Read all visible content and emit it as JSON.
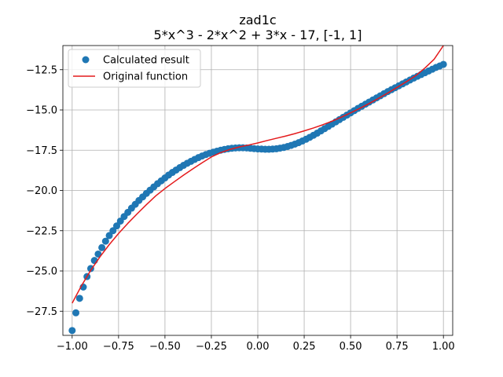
{
  "chart_data": {
    "type": "scatter",
    "title": "zad1c",
    "subtitle": "5*x^3 - 2*x^2 + 3*x - 17, [-1, 1]",
    "xlabel": "",
    "ylabel": "",
    "xlim": [
      -1.05,
      1.05
    ],
    "ylim": [
      -29.0,
      -11.0
    ],
    "x_ticks": [
      -1.0,
      -0.75,
      -0.5,
      -0.25,
      0.0,
      0.25,
      0.5,
      0.75,
      1.0
    ],
    "x_tick_labels": [
      "−1.00",
      "−0.75",
      "−0.50",
      "−0.25",
      "0.00",
      "0.25",
      "0.50",
      "0.75",
      "1.00"
    ],
    "y_ticks": [
      -27.5,
      -25.0,
      -22.5,
      -20.0,
      -17.5,
      -15.0,
      -12.5
    ],
    "y_tick_labels": [
      "−27.5",
      "−25.0",
      "−22.5",
      "−20.0",
      "−17.5",
      "−15.0",
      "−12.5"
    ],
    "grid": true,
    "legend_placement": "upper-left",
    "series": [
      {
        "name": "Calculated result",
        "kind": "scatter",
        "color": "#1f77b4",
        "x": [
          -1.0,
          -0.98,
          -0.96,
          -0.94,
          -0.92,
          -0.9,
          -0.88,
          -0.86,
          -0.84,
          -0.82,
          -0.8,
          -0.78,
          -0.76,
          -0.74,
          -0.72,
          -0.7,
          -0.68,
          -0.66,
          -0.64,
          -0.62,
          -0.6,
          -0.58,
          -0.56,
          -0.54,
          -0.52,
          -0.5,
          -0.48,
          -0.46,
          -0.44,
          -0.42,
          -0.4,
          -0.38,
          -0.36,
          -0.34,
          -0.32,
          -0.3,
          -0.28,
          -0.26,
          -0.24,
          -0.22,
          -0.2,
          -0.18,
          -0.16,
          -0.14,
          -0.12,
          -0.1,
          -0.08,
          -0.06,
          -0.04,
          -0.02,
          0.0,
          0.02,
          0.04,
          0.06,
          0.08,
          0.1,
          0.12,
          0.14,
          0.16,
          0.18,
          0.2,
          0.22,
          0.24,
          0.26,
          0.28,
          0.3,
          0.32,
          0.34,
          0.36,
          0.38,
          0.4,
          0.42,
          0.44,
          0.46,
          0.48,
          0.5,
          0.52,
          0.54,
          0.56,
          0.58,
          0.6,
          0.62,
          0.64,
          0.66,
          0.68,
          0.7,
          0.72,
          0.74,
          0.76,
          0.78,
          0.8,
          0.82,
          0.84,
          0.86,
          0.88,
          0.9,
          0.92,
          0.94,
          0.96,
          0.98,
          1.0
        ],
        "y": [
          -28.7,
          -27.6,
          -26.7,
          -26.0,
          -25.35,
          -24.85,
          -24.35,
          -23.95,
          -23.55,
          -23.15,
          -22.8,
          -22.5,
          -22.2,
          -21.9,
          -21.62,
          -21.36,
          -21.1,
          -20.86,
          -20.62,
          -20.4,
          -20.18,
          -19.98,
          -19.78,
          -19.58,
          -19.4,
          -19.22,
          -19.04,
          -18.88,
          -18.73,
          -18.58,
          -18.44,
          -18.31,
          -18.19,
          -18.07,
          -17.96,
          -17.86,
          -17.77,
          -17.69,
          -17.62,
          -17.56,
          -17.5,
          -17.45,
          -17.41,
          -17.38,
          -17.36,
          -17.35,
          -17.35,
          -17.36,
          -17.38,
          -17.4,
          -17.42,
          -17.43,
          -17.44,
          -17.44,
          -17.43,
          -17.41,
          -17.37,
          -17.33,
          -17.27,
          -17.2,
          -17.12,
          -17.03,
          -16.93,
          -16.82,
          -16.7,
          -16.57,
          -16.44,
          -16.3,
          -16.16,
          -16.02,
          -15.88,
          -15.74,
          -15.6,
          -15.46,
          -15.32,
          -15.18,
          -15.04,
          -14.9,
          -14.77,
          -14.64,
          -14.51,
          -14.38,
          -14.25,
          -14.12,
          -13.99,
          -13.86,
          -13.74,
          -13.62,
          -13.5,
          -13.38,
          -13.26,
          -13.14,
          -13.02,
          -12.91,
          -12.8,
          -12.69,
          -12.58,
          -12.47,
          -12.36,
          -12.27,
          -12.17
        ]
      },
      {
        "name": "Original function",
        "kind": "line",
        "color": "#e41a1c",
        "x": [
          -1.0,
          -0.95,
          -0.9,
          -0.85,
          -0.8,
          -0.75,
          -0.7,
          -0.65,
          -0.6,
          -0.55,
          -0.5,
          -0.45,
          -0.4,
          -0.35,
          -0.3,
          -0.25,
          -0.2,
          -0.15,
          -0.1,
          -0.05,
          0.0,
          0.05,
          0.1,
          0.15,
          0.2,
          0.25,
          0.3,
          0.35,
          0.4,
          0.45,
          0.5,
          0.55,
          0.6,
          0.65,
          0.7,
          0.75,
          0.8,
          0.85,
          0.9,
          0.95,
          1.0
        ],
        "y": [
          -27.0,
          -25.92,
          -24.96,
          -24.12,
          -23.36,
          -22.67,
          -22.04,
          -21.45,
          -20.88,
          -20.34,
          -19.88,
          -19.46,
          -19.05,
          -18.66,
          -18.28,
          -17.92,
          -17.65,
          -17.45,
          -17.3,
          -17.18,
          -17.05,
          -16.9,
          -16.76,
          -16.62,
          -16.47,
          -16.3,
          -16.12,
          -15.92,
          -15.7,
          -15.45,
          -15.18,
          -14.9,
          -14.6,
          -14.28,
          -13.95,
          -13.6,
          -13.25,
          -12.88,
          -12.4,
          -11.85,
          -11.0
        ]
      }
    ]
  }
}
